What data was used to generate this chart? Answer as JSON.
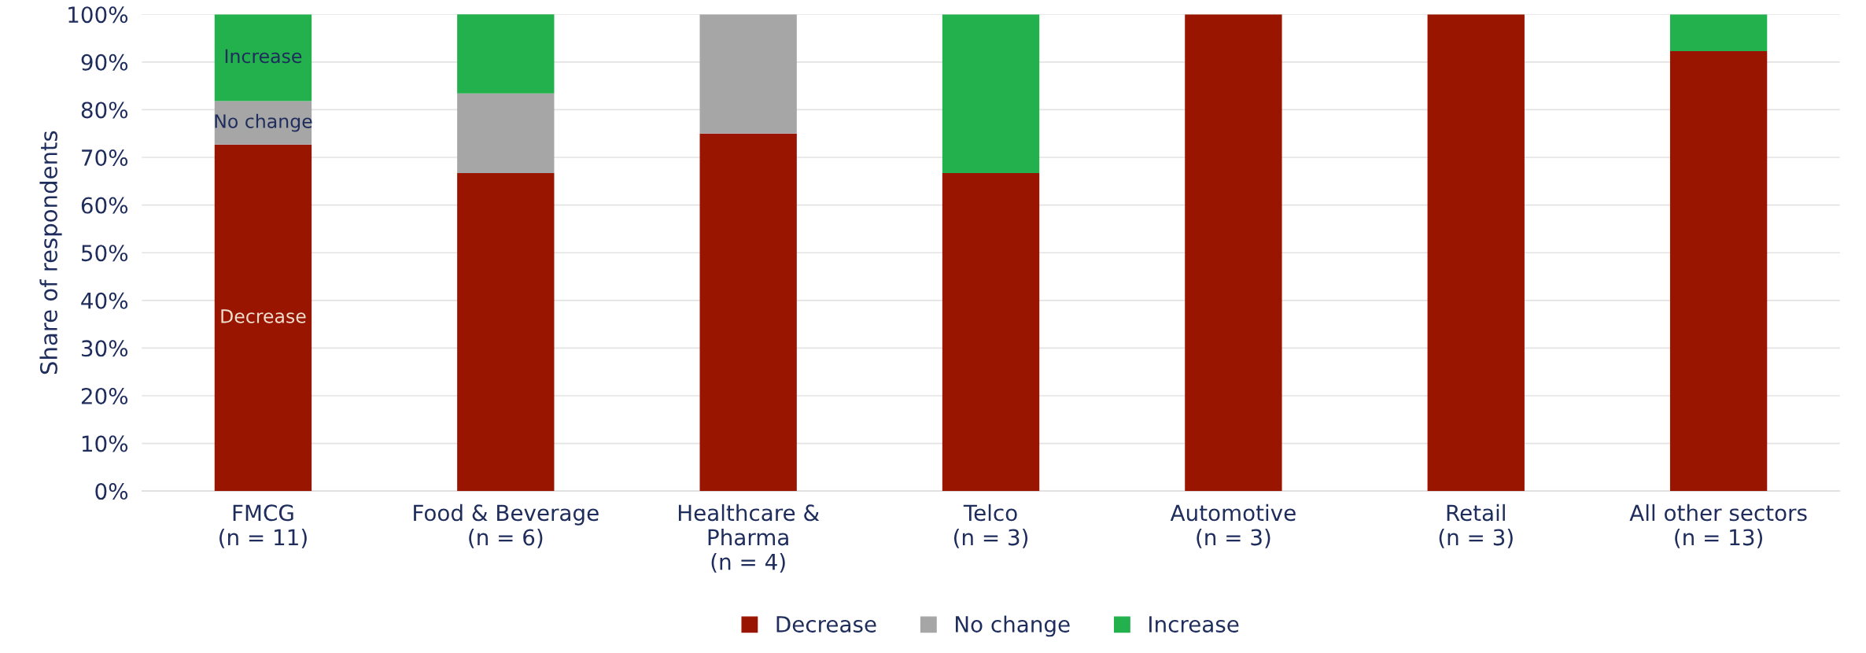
{
  "chart_data": {
    "type": "bar",
    "stacked": true,
    "ylabel": "Share of respondents",
    "categories": [
      "FMCG\n(n = 11)",
      "Food & Beverage\n(n = 6)",
      "Healthcare &\nPharma\n(n = 4)",
      "Telco\n(n = 3)",
      "Automotive\n(n = 3)",
      "Retail\n(n = 3)",
      "All other sectors\n(n = 13)"
    ],
    "series": [
      {
        "name": "Decrease",
        "color": "#991500",
        "values": [
          72.7,
          66.7,
          75,
          66.7,
          100,
          100,
          92.3
        ]
      },
      {
        "name": "No change",
        "color": "#a6a6a6",
        "values": [
          9.1,
          16.7,
          25,
          0,
          0,
          0,
          0
        ]
      },
      {
        "name": "Increase",
        "color": "#22b14c",
        "values": [
          18.2,
          16.7,
          0,
          33.3,
          0,
          0,
          7.7
        ]
      }
    ],
    "ylim": [
      0,
      100
    ],
    "yticks": [
      {
        "value": 0,
        "label": "0%"
      },
      {
        "value": 10,
        "label": "10%"
      },
      {
        "value": 20,
        "label": "20%"
      },
      {
        "value": 30,
        "label": "30%"
      },
      {
        "value": 40,
        "label": "40%"
      },
      {
        "value": 50,
        "label": "50%"
      },
      {
        "value": 60,
        "label": "60%"
      },
      {
        "value": 70,
        "label": "70%"
      },
      {
        "value": 80,
        "label": "80%"
      },
      {
        "value": 90,
        "label": "90%"
      },
      {
        "value": 100,
        "label": "100%"
      }
    ],
    "grid": "y",
    "legend": "bottom",
    "annotations": [
      "Decrease",
      "No change",
      "Increase"
    ]
  }
}
